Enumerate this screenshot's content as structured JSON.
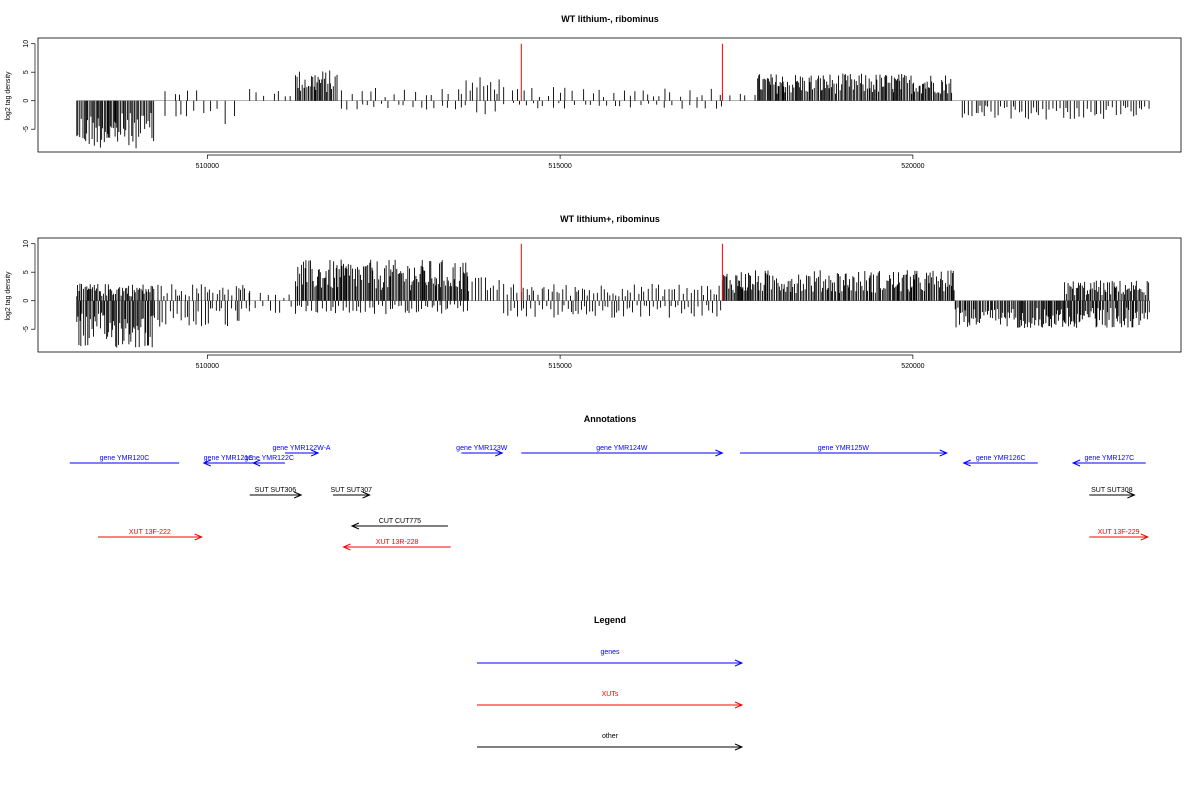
{
  "panels": [
    {
      "title": "WT lithium-, ribominus",
      "ylabel": "log2 tag density",
      "yticks": [
        "10",
        "5",
        "0",
        "-5"
      ],
      "xticks": [
        "510000",
        "515000",
        "520000"
      ]
    },
    {
      "title": "WT lithium+, ribominus",
      "ylabel": "log2 tag density",
      "yticks": [
        "10",
        "5",
        "0",
        "-5"
      ],
      "xticks": [
        "510000",
        "515000",
        "520000"
      ]
    }
  ],
  "annotations": {
    "title": "Annotations",
    "features": [
      {
        "label": "gene YMR120C",
        "kind": "gene",
        "dir": "none",
        "start": 508050,
        "end": 509600,
        "row": 0
      },
      {
        "label": "gene YMR121C",
        "kind": "gene",
        "dir": "left",
        "start": 509950,
        "end": 510650,
        "row": 0
      },
      {
        "label": "gene YMR122C",
        "kind": "gene",
        "dir": "left",
        "start": 510650,
        "end": 511100,
        "row": 0
      },
      {
        "label": "gene YMR122W-A",
        "kind": "gene",
        "dir": "right",
        "start": 511100,
        "end": 511570,
        "row": 1
      },
      {
        "label": "gene YMR123W",
        "kind": "gene",
        "dir": "right",
        "start": 513600,
        "end": 514180,
        "row": 1
      },
      {
        "label": "gene YMR124W",
        "kind": "gene",
        "dir": "right",
        "start": 514450,
        "end": 517300,
        "row": 1
      },
      {
        "label": "gene YMR125W",
        "kind": "gene",
        "dir": "right",
        "start": 517550,
        "end": 520480,
        "row": 1
      },
      {
        "label": "gene YMR126C",
        "kind": "gene",
        "dir": "left",
        "start": 520720,
        "end": 521770,
        "row": 0
      },
      {
        "label": "gene YMR127C",
        "kind": "gene",
        "dir": "left",
        "start": 522270,
        "end": 523300,
        "row": 0
      },
      {
        "label": "SUT SUT306",
        "kind": "other",
        "dir": "right",
        "start": 510600,
        "end": 511330,
        "row": 2
      },
      {
        "label": "SUT SUT307",
        "kind": "other",
        "dir": "right",
        "start": 511780,
        "end": 512300,
        "row": 2
      },
      {
        "label": "SUT SUT308",
        "kind": "other",
        "dir": "right",
        "start": 522500,
        "end": 523140,
        "row": 2
      },
      {
        "label": "CUT CUT775",
        "kind": "other",
        "dir": "left",
        "start": 512050,
        "end": 513410,
        "row": 3
      },
      {
        "label": "XUT 13F-222",
        "kind": "xut",
        "dir": "right",
        "start": 508450,
        "end": 509920,
        "row": 4
      },
      {
        "label": "XUT 13R-228",
        "kind": "xut",
        "dir": "left",
        "start": 511930,
        "end": 513450,
        "row": 5
      },
      {
        "label": "XUT 13F-229",
        "kind": "xut",
        "dir": "right",
        "start": 522500,
        "end": 523330,
        "row": 4
      }
    ]
  },
  "legend": {
    "title": "Legend",
    "items": [
      {
        "label": "genes",
        "color": "#0000ff"
      },
      {
        "label": "XUTs",
        "color": "#ff0000"
      },
      {
        "label": "other",
        "color": "#000000"
      }
    ]
  },
  "colors": {
    "gene": "#0000ff",
    "xut": "#ff0000",
    "other": "#000000",
    "marker": "#ff0000",
    "bar": "#000000"
  },
  "chart_data": [
    {
      "type": "bar",
      "title": "WT lithium-, ribominus",
      "xlabel": "",
      "ylabel": "log2 tag density",
      "xlim": [
        507600,
        523800
      ],
      "ylim": [
        -9,
        11
      ],
      "xticks": [
        510000,
        515000,
        520000
      ],
      "yticks": [
        10,
        5,
        0,
        -5
      ],
      "markers": [
        514450,
        517300
      ],
      "regions": [
        {
          "start": 508150,
          "end": 509250,
          "level": -7.0,
          "density": "dense"
        },
        {
          "start": 509400,
          "end": 509900,
          "level": 2.0,
          "density": "sparse"
        },
        {
          "start": 509400,
          "end": 509900,
          "level": -3.0,
          "density": "sparse"
        },
        {
          "start": 509950,
          "end": 510450,
          "level": -3.5,
          "density": "sparse"
        },
        {
          "start": 510600,
          "end": 511200,
          "level": 2.0,
          "density": "sparse"
        },
        {
          "start": 511250,
          "end": 511850,
          "level": 4.5,
          "density": "dense"
        },
        {
          "start": 511900,
          "end": 513600,
          "level": 2.0,
          "density": "sparse"
        },
        {
          "start": 511900,
          "end": 513600,
          "level": -1.5,
          "density": "sparse"
        },
        {
          "start": 513600,
          "end": 514150,
          "level": 3.5,
          "density": "medium"
        },
        {
          "start": 513600,
          "end": 514150,
          "level": -2.0,
          "density": "sparse"
        },
        {
          "start": 514200,
          "end": 517300,
          "level": 2.0,
          "density": "sparse"
        },
        {
          "start": 514200,
          "end": 517300,
          "level": -1.2,
          "density": "sparse"
        },
        {
          "start": 517300,
          "end": 517800,
          "level": 2.2,
          "density": "sparse"
        },
        {
          "start": 517800,
          "end": 520550,
          "level": 4.0,
          "density": "dense"
        },
        {
          "start": 520700,
          "end": 523350,
          "level": -2.8,
          "density": "medium"
        }
      ]
    },
    {
      "type": "bar",
      "title": "WT lithium+, ribominus",
      "xlabel": "",
      "ylabel": "log2 tag density",
      "xlim": [
        507600,
        523800
      ],
      "ylim": [
        -9,
        11
      ],
      "xticks": [
        510000,
        515000,
        520000
      ],
      "yticks": [
        10,
        5,
        0,
        -5
      ],
      "markers": [
        514450,
        517300
      ],
      "regions": [
        {
          "start": 508150,
          "end": 509250,
          "level": 2.5,
          "density": "dense"
        },
        {
          "start": 508150,
          "end": 509250,
          "level": -7.0,
          "density": "dense"
        },
        {
          "start": 509300,
          "end": 510600,
          "level": 2.5,
          "density": "medium"
        },
        {
          "start": 509300,
          "end": 510600,
          "level": -4.0,
          "density": "medium"
        },
        {
          "start": 510600,
          "end": 511250,
          "level": 1.5,
          "density": "sparse"
        },
        {
          "start": 510600,
          "end": 511250,
          "level": -2.0,
          "density": "sparse"
        },
        {
          "start": 511250,
          "end": 513700,
          "level": 6.0,
          "density": "dense"
        },
        {
          "start": 511250,
          "end": 513700,
          "level": -2.0,
          "density": "medium"
        },
        {
          "start": 513700,
          "end": 514150,
          "level": 3.5,
          "density": "medium"
        },
        {
          "start": 514200,
          "end": 517300,
          "level": 2.5,
          "density": "medium"
        },
        {
          "start": 514200,
          "end": 517300,
          "level": -2.5,
          "density": "medium"
        },
        {
          "start": 517300,
          "end": 520600,
          "level": 4.5,
          "density": "dense"
        },
        {
          "start": 520600,
          "end": 522150,
          "level": -4.0,
          "density": "dense"
        },
        {
          "start": 522150,
          "end": 523350,
          "level": 3.0,
          "density": "dense"
        },
        {
          "start": 522150,
          "end": 523350,
          "level": -4.0,
          "density": "dense"
        }
      ]
    }
  ]
}
